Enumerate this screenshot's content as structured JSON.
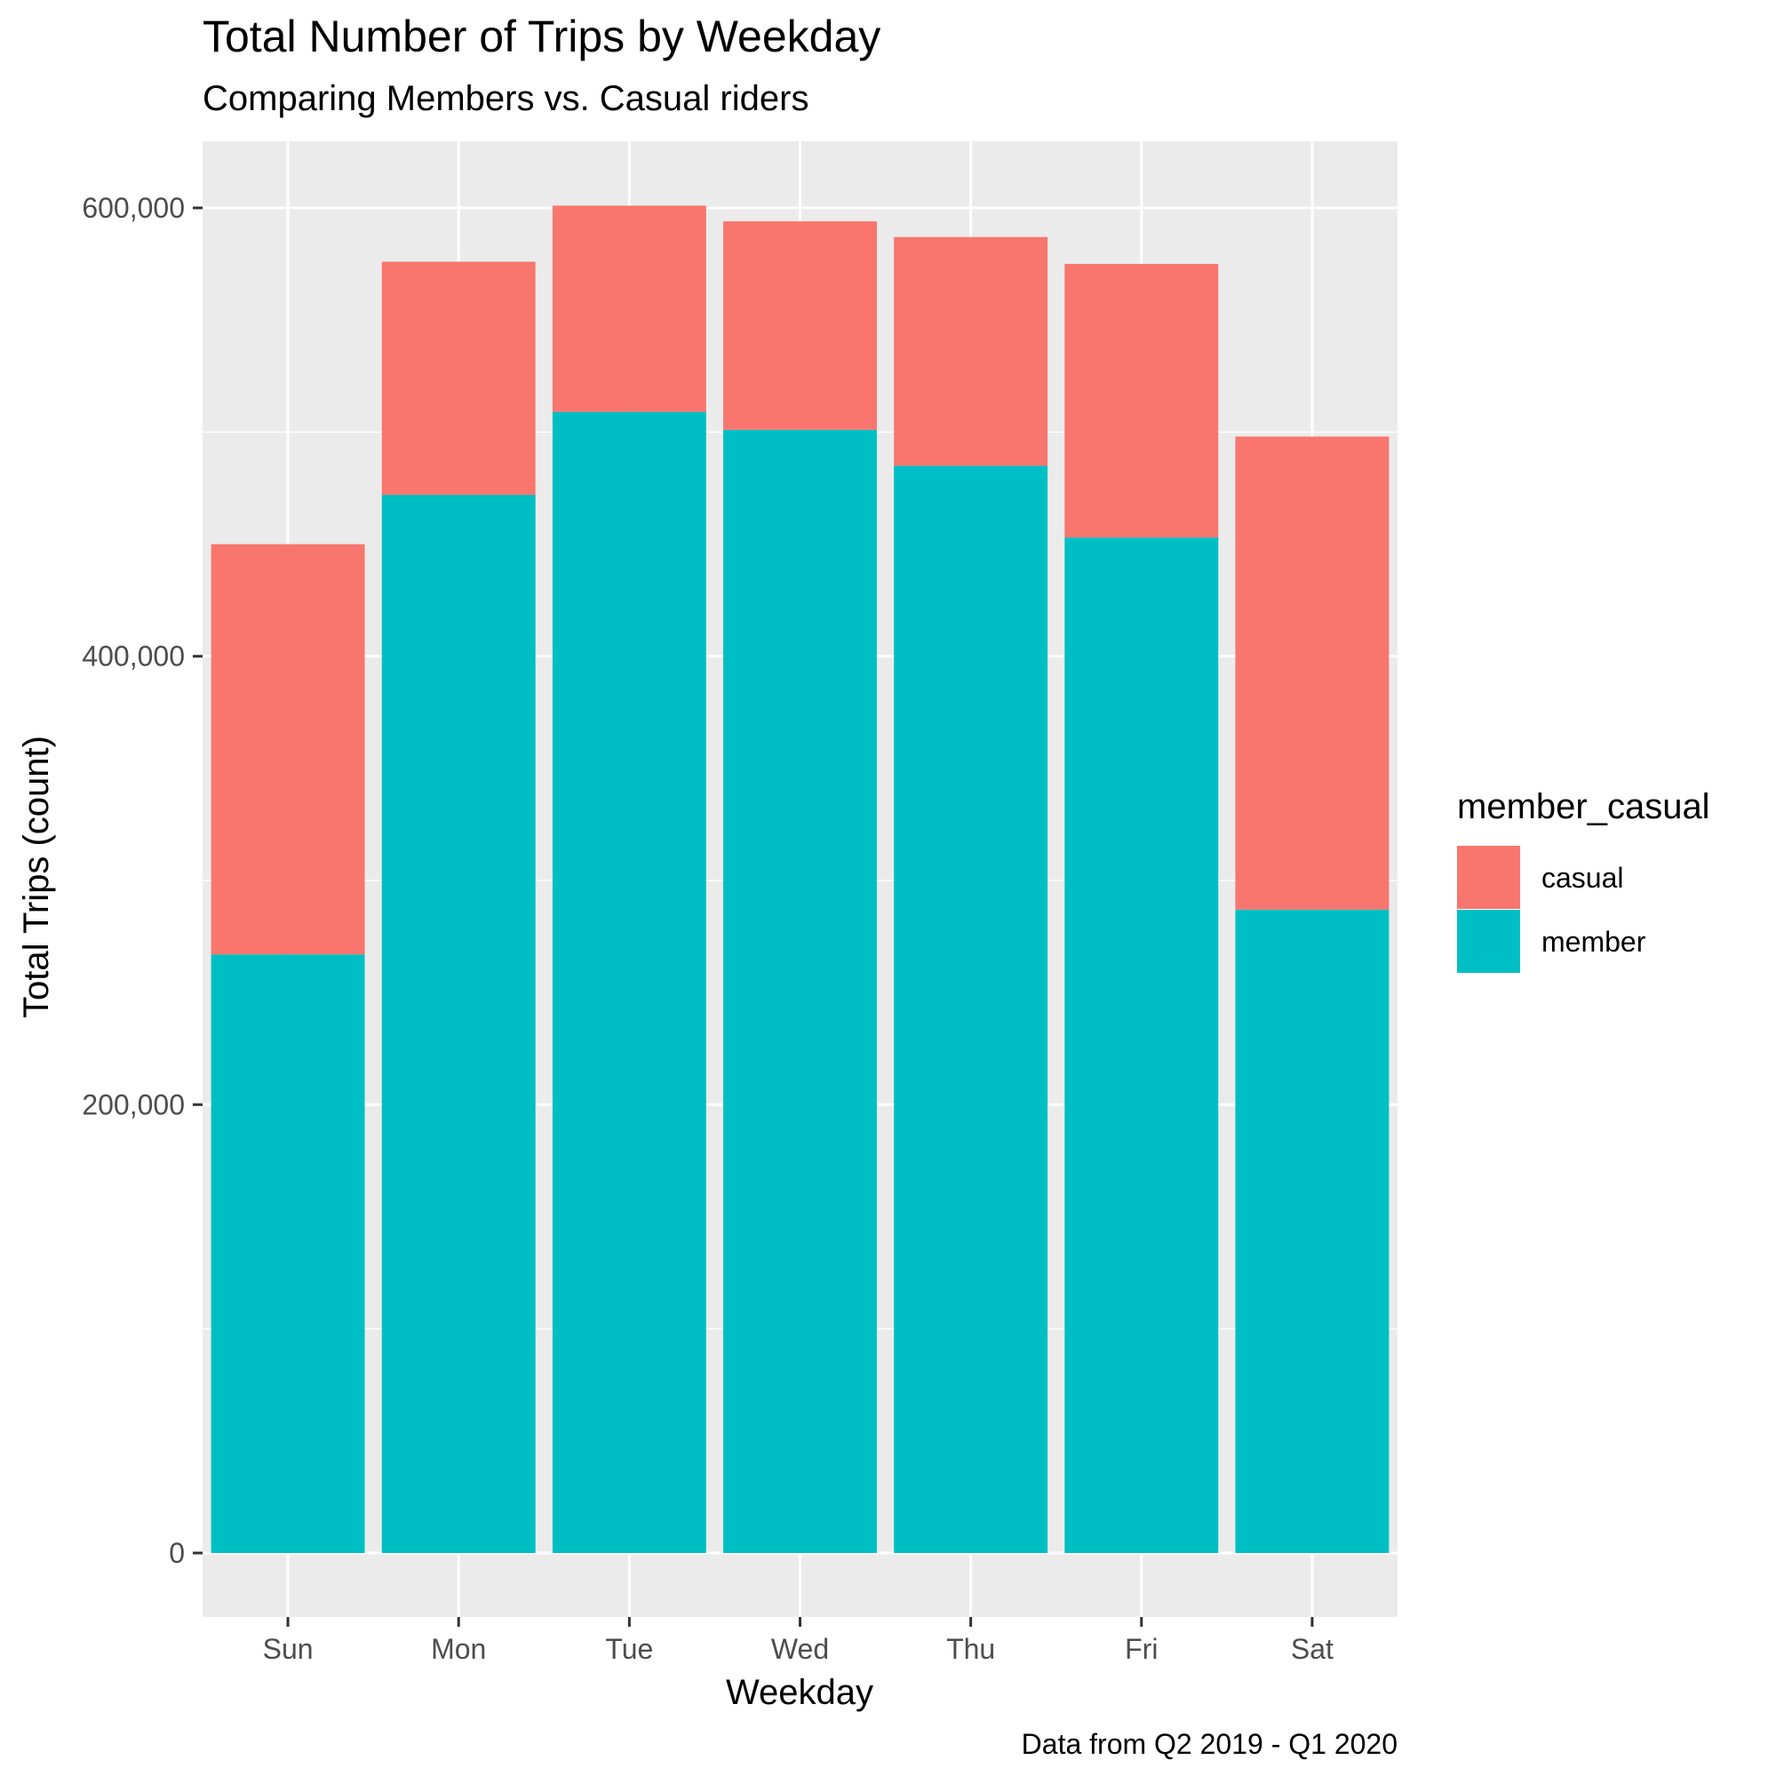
{
  "chart_data": {
    "type": "bar",
    "stacked": true,
    "title": "Total Number of Trips by Weekday",
    "subtitle": "Comparing Members vs. Casual riders",
    "xlabel": "Weekday",
    "ylabel": "Total Trips (count)",
    "caption": "Data from Q2 2019 - Q1 2020",
    "categories": [
      "Sun",
      "Mon",
      "Tue",
      "Wed",
      "Thu",
      "Fri",
      "Sat"
    ],
    "series": [
      {
        "name": "member",
        "color": "#00BFC4",
        "values": [
          267000,
          472000,
          509000,
          501000,
          485000,
          453000,
          287000
        ]
      },
      {
        "name": "casual",
        "color": "#F8766D",
        "values": [
          183000,
          104000,
          92000,
          93000,
          102000,
          122000,
          211000
        ]
      }
    ],
    "ylim": [
      -30000,
      630000
    ],
    "yticks": [
      0,
      200000,
      400000,
      600000
    ],
    "ytick_labels": [
      "0",
      "200,000",
      "400,000",
      "600,000"
    ],
    "y_minor_ticks": [
      100000,
      300000,
      500000
    ],
    "grid": true,
    "legend": {
      "title": "member_casual",
      "position": "right",
      "entries": [
        {
          "name": "casual",
          "color": "#F8766D"
        },
        {
          "name": "member",
          "color": "#00BFC4"
        }
      ]
    },
    "panel_background": "#EBEBEB",
    "grid_color": "#FFFFFF"
  }
}
